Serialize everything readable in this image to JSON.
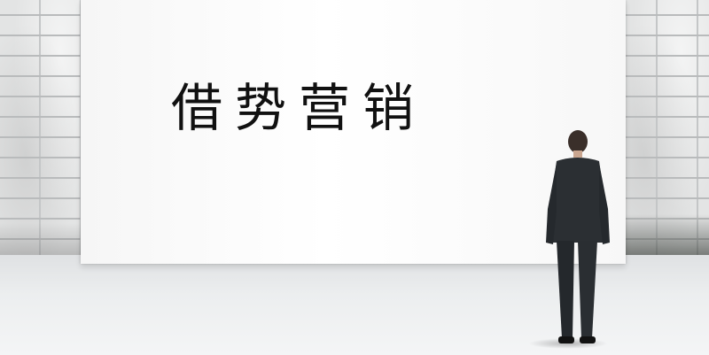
{
  "image": {
    "headline": "借势营销"
  }
}
